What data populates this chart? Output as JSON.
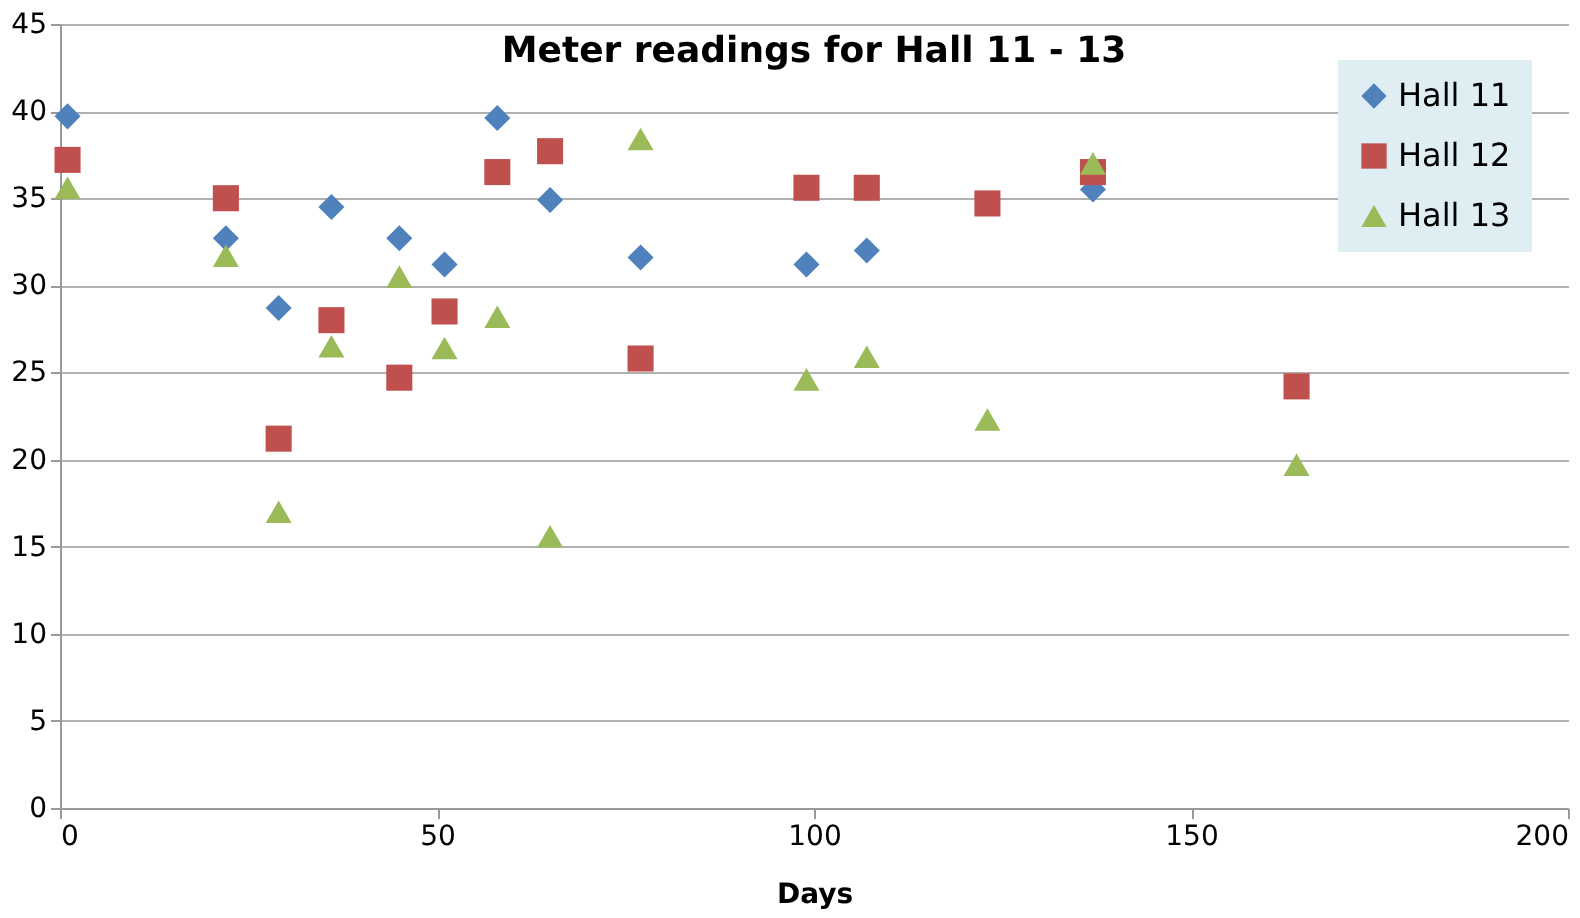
{
  "chart_data": {
    "type": "scatter",
    "title": "Meter readings for Hall 11 - 13",
    "xlabel": "Days",
    "xlim": [
      0,
      200
    ],
    "xticks": [
      0,
      50,
      100,
      150,
      200
    ],
    "ylim": [
      0,
      45
    ],
    "yticks": [
      0,
      5,
      10,
      15,
      20,
      25,
      30,
      35,
      40,
      45
    ],
    "grid": "y",
    "legend": "top right",
    "series": [
      {
        "name": "Hall 11",
        "color": "#4f81bd",
        "marker": "diamond",
        "x": [
          1,
          22,
          29,
          36,
          45,
          51,
          58,
          65,
          77,
          99,
          107,
          123,
          137
        ],
        "values": [
          39.7,
          32.7,
          28.7,
          34.5,
          32.7,
          31.2,
          39.6,
          34.9,
          31.6,
          31.2,
          32,
          null,
          35.5
        ]
      },
      {
        "name": "Hall 12",
        "color": "#c0504d",
        "marker": "square",
        "x": [
          1,
          22,
          29,
          36,
          45,
          51,
          58,
          65,
          77,
          99,
          107,
          123,
          137,
          164
        ],
        "values": [
          37.2,
          35,
          21.2,
          28,
          24.7,
          28.5,
          36.5,
          37.7,
          25.8,
          35.6,
          35.6,
          34.7,
          36.5,
          24.2
        ]
      },
      {
        "name": "Hall 13",
        "color": "#9bbb59",
        "marker": "triangle",
        "x": [
          1,
          22,
          29,
          36,
          45,
          51,
          58,
          65,
          77,
          99,
          107,
          123,
          137,
          164
        ],
        "values": [
          35.6,
          31.7,
          17,
          26.5,
          30.5,
          26.4,
          28.2,
          15.6,
          38.4,
          24.6,
          25.9,
          22.3,
          37,
          19.7
        ]
      }
    ]
  }
}
